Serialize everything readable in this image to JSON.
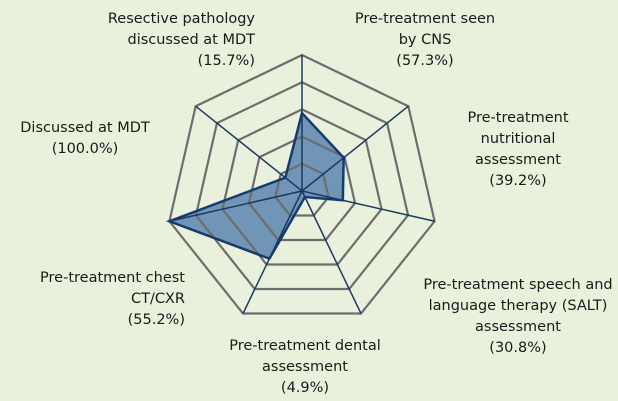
{
  "chart_data": {
    "type": "radar",
    "categories": [
      "Pre-treatment seen by CNS",
      "Pre-treatment nutritional assessment",
      "Pre-treatment speech and language therapy (SALT) assessment",
      "Pre-treatment dental assessment",
      "Pre-treatment chest CT/CXR",
      "Discussed at MDT",
      "Resective pathology discussed at MDT"
    ],
    "values": [
      57.3,
      39.2,
      30.8,
      4.9,
      55.2,
      100.0,
      15.7
    ],
    "value_labels": [
      "(57.3%)",
      "(39.2%)",
      "(30.8%)",
      "(4.9%)",
      "(55.2%)",
      "(100.0%)",
      "(15.7%)"
    ],
    "color": "#7195b7",
    "ylim": [
      0,
      100
    ],
    "yticks": [
      20,
      40,
      60,
      80,
      100
    ],
    "grid": true
  }
}
